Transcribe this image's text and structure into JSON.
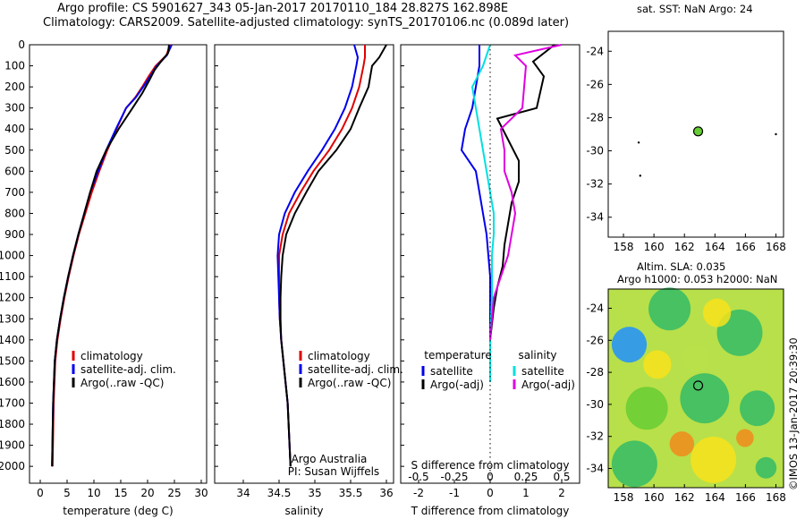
{
  "header": {
    "title_line1": "Argo profile: CS 5901627_343 05-Jan-2017 20170110_184 28.827S 162.898E",
    "title_line2": "Climatology: CARS2009. Satellite-adjusted climatology: synTS_20170106.nc (0.089d later)"
  },
  "colors": {
    "climatology": "#e00000",
    "satellite": "#0000ee",
    "argo": "#000000",
    "sal_satellite": "#00e0e0",
    "sal_argo": "#e000e0",
    "float_marker": "#66cc33"
  },
  "side": {
    "sst_title": "sat. SST: NaN  Argo: 24",
    "sla_title_line1": "Altim. SLA: 0.035",
    "sla_title_line2": "Argo h1000: 0.053  h2000: NaN",
    "stamp": "©IMOS 13-Jan-2017 20:39:30"
  },
  "chart_data": [
    {
      "type": "line",
      "name": "temperature-panel",
      "xlabel": "temperature (deg C)",
      "ylabel": "",
      "xlim": [
        -2,
        31
      ],
      "ylim": [
        0,
        2080
      ],
      "xticks": [
        0,
        5,
        10,
        15,
        20,
        25,
        30
      ],
      "yticks": [
        0,
        100,
        200,
        300,
        400,
        500,
        600,
        700,
        800,
        900,
        1000,
        1100,
        1200,
        1300,
        1400,
        1500,
        1600,
        1700,
        1800,
        1900,
        2000
      ],
      "legend": [
        "climatology",
        "satellite-adj. clim.",
        "Argo(..raw -QC)"
      ],
      "series": [
        {
          "name": "climatology",
          "color_key": "climatology",
          "x": [
            24.2,
            23.5,
            21.5,
            20.2,
            19,
            17.7,
            16,
            14.2,
            12.5,
            11,
            9.6,
            8.4,
            7.2,
            6.2,
            5.3,
            4.5,
            3.8,
            3.2,
            2.8,
            2.5,
            2.3
          ],
          "y": [
            0,
            50,
            100,
            150,
            200,
            250,
            300,
            400,
            500,
            600,
            700,
            800,
            900,
            1000,
            1100,
            1200,
            1300,
            1400,
            1500,
            1700,
            2000
          ]
        },
        {
          "name": "satellite-adj. clim.",
          "color_key": "satellite",
          "x": [
            24.5,
            23.6,
            21.7,
            20.5,
            19.2,
            17.8,
            16,
            14.1,
            12.3,
            10.8,
            9.3,
            8.2,
            7.1,
            6.1,
            5.2,
            4.4,
            3.7,
            3.1,
            2.7,
            2.4,
            2.2
          ],
          "y": [
            0,
            50,
            100,
            150,
            200,
            250,
            300,
            400,
            500,
            600,
            700,
            800,
            900,
            1000,
            1100,
            1200,
            1300,
            1400,
            1500,
            1700,
            2000
          ]
        },
        {
          "name": "Argo(..raw -QC)",
          "color_key": "argo",
          "x": [
            24,
            23.8,
            22.5,
            21.3,
            20.3,
            19,
            17.2,
            14.6,
            12.3,
            10.5,
            9.3,
            8.2,
            7.1,
            6.1,
            5.2,
            4.4,
            3.7,
            3.1,
            2.7,
            2.4,
            2.2
          ],
          "y": [
            0,
            40,
            80,
            120,
            170,
            230,
            300,
            400,
            500,
            600,
            700,
            800,
            900,
            1000,
            1100,
            1200,
            1300,
            1400,
            1500,
            1700,
            2000
          ]
        }
      ]
    },
    {
      "type": "line",
      "name": "salinity-panel",
      "xlabel": "salinity",
      "xlim": [
        33.6,
        36.1
      ],
      "ylim": [
        0,
        2080
      ],
      "xticks": [
        34,
        34.5,
        35,
        35.5,
        36
      ],
      "legend": [
        "climatology",
        "satellite-adj. clim.",
        "Argo(..raw -QC)"
      ],
      "annotation_line1": "Argo Australia",
      "annotation_line2": "PI: Susan Wijffels",
      "series": [
        {
          "name": "climatology",
          "color_key": "climatology",
          "x": [
            35.7,
            35.7,
            35.68,
            35.62,
            35.52,
            35.38,
            35.2,
            34.98,
            34.8,
            34.64,
            34.55,
            34.5,
            34.5,
            34.5,
            34.51,
            34.53,
            34.56,
            34.59,
            34.62,
            34.66
          ],
          "y": [
            0,
            60,
            100,
            200,
            300,
            400,
            500,
            600,
            700,
            800,
            900,
            1000,
            1100,
            1200,
            1300,
            1400,
            1500,
            1600,
            1700,
            2000
          ]
        },
        {
          "name": "satellite-adj. clim.",
          "color_key": "satellite",
          "x": [
            35.55,
            35.6,
            35.58,
            35.52,
            35.42,
            35.28,
            35.1,
            34.9,
            34.72,
            34.58,
            34.5,
            34.48,
            34.49,
            34.5,
            34.51,
            34.53,
            34.56,
            34.59,
            34.62,
            34.66
          ],
          "y": [
            0,
            60,
            100,
            200,
            300,
            400,
            500,
            600,
            700,
            800,
            900,
            1000,
            1100,
            1200,
            1300,
            1400,
            1500,
            1600,
            1700,
            2000
          ]
        },
        {
          "name": "Argo(..raw -QC)",
          "color_key": "argo",
          "x": [
            36.0,
            35.9,
            35.8,
            35.75,
            35.62,
            35.5,
            35.3,
            35.05,
            34.88,
            34.72,
            34.6,
            34.55,
            34.53,
            34.52,
            34.52,
            34.53,
            34.56,
            34.59,
            34.62,
            34.66
          ],
          "y": [
            0,
            60,
            100,
            200,
            300,
            400,
            500,
            600,
            700,
            800,
            900,
            1000,
            1100,
            1200,
            1300,
            1400,
            1500,
            1600,
            1700,
            2000
          ]
        }
      ]
    },
    {
      "type": "line",
      "name": "difference-panel",
      "xlabel": "T difference from climatology",
      "top_xlabel": "S difference from climatology",
      "xlim": [
        -2.5,
        2.5
      ],
      "ylim": [
        0,
        2080
      ],
      "xticks": [
        -2,
        -1,
        0,
        1,
        2
      ],
      "top_xtick_labels": [
        "-0.5",
        "-0.25",
        "0",
        "0.25",
        "0.5"
      ],
      "legend_temperature_title": "temperature",
      "legend_salinity_title": "salinity",
      "legend": [
        "satellite",
        "Argo(-adj)",
        "satellite",
        "Argo(-adj)"
      ],
      "series": [
        {
          "name": "satellite",
          "color_key": "satellite",
          "x": [
            -0.3,
            -0.3,
            -0.4,
            -0.5,
            -0.7,
            -0.8,
            -0.6,
            -0.4,
            -0.3,
            -0.2,
            -0.1,
            -0.05,
            0,
            0,
            0,
            0
          ],
          "y": [
            0,
            100,
            200,
            300,
            400,
            500,
            550,
            600,
            700,
            800,
            900,
            1000,
            1100,
            1200,
            1400,
            1600
          ]
        },
        {
          "name": "Argo(-adj)",
          "color_key": "argo",
          "x": [
            1.8,
            1.2,
            1.5,
            1.3,
            0.2,
            0.5,
            0.8,
            0.8,
            0.6,
            0.5,
            0.4,
            0.35,
            0.2,
            0.1,
            0,
            0
          ],
          "y": [
            0,
            80,
            150,
            300,
            350,
            450,
            550,
            650,
            750,
            850,
            950,
            1050,
            1150,
            1250,
            1400,
            1600
          ]
        },
        {
          "name": "satellite",
          "color_key": "sal_satellite",
          "x": [
            0,
            -0.2,
            -0.5,
            -0.4,
            -0.3,
            -0.2,
            -0.1,
            0,
            0.1,
            0.1,
            0.05,
            0.05,
            0,
            0
          ],
          "y": [
            0,
            100,
            200,
            300,
            400,
            500,
            600,
            700,
            800,
            900,
            1000,
            1200,
            1400,
            1600
          ]
        },
        {
          "name": "Argo(-adj)",
          "color_key": "sal_argo",
          "x": [
            2.0,
            0.7,
            1.0,
            0.9,
            0.3,
            0.4,
            0.4,
            0.6,
            0.7,
            0.6,
            0.5,
            0.3,
            0.1,
            0
          ],
          "y": [
            0,
            50,
            100,
            300,
            400,
            500,
            600,
            700,
            800,
            900,
            1000,
            1100,
            1200,
            1400
          ]
        }
      ]
    },
    {
      "type": "scatter",
      "name": "sst-map",
      "title": "sat. SST: NaN  Argo: 24",
      "xlim": [
        157,
        168.5
      ],
      "ylim": [
        -35.2,
        -22.8
      ],
      "xticks": [
        158,
        160,
        162,
        164,
        166,
        168
      ],
      "yticks": [
        -24,
        -26,
        -28,
        -30,
        -32,
        -34
      ],
      "points": [
        {
          "x": 162.898,
          "y": -28.827,
          "role": "float"
        },
        {
          "x": 159.0,
          "y": -29.5
        },
        {
          "x": 159.1,
          "y": -31.5
        },
        {
          "x": 168.0,
          "y": -29.0
        }
      ]
    },
    {
      "type": "heatmap",
      "name": "sla-map",
      "title": "Altim. SLA: 0.035",
      "subtitle": "Argo h1000: 0.053  h2000: NaN",
      "xlim": [
        157,
        168.5
      ],
      "ylim": [
        -35.2,
        -22.8
      ],
      "xticks": [
        158,
        160,
        162,
        164,
        166,
        168
      ],
      "yticks": [
        -24,
        -26,
        -28,
        -30,
        -32,
        -34
      ],
      "points": [
        {
          "x": 162.898,
          "y": -28.827,
          "role": "float"
        }
      ]
    }
  ]
}
